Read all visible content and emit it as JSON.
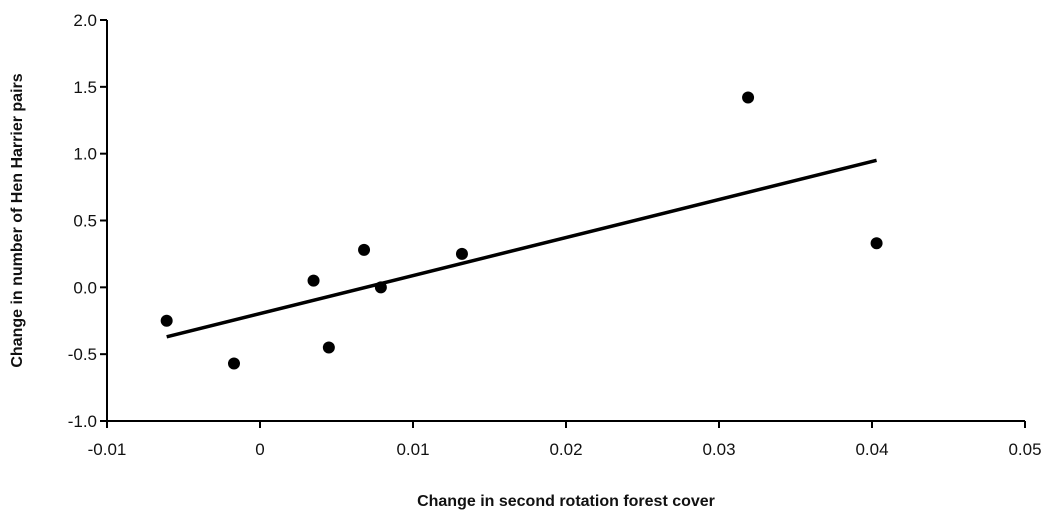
{
  "chart_data": {
    "type": "scatter",
    "title": "",
    "xlabel": "Change in second rotation forest cover",
    "ylabel": "Change in number of Hen Harrier pairs",
    "xlim": [
      -0.01,
      0.05
    ],
    "ylim": [
      -1.0,
      2.0
    ],
    "x_ticks": [
      -0.01,
      0,
      0.01,
      0.02,
      0.03,
      0.04,
      0.05
    ],
    "x_tick_labels": [
      "-0.01",
      "0",
      "0.01",
      "0.02",
      "0.03",
      "0.04",
      "0.05"
    ],
    "y_ticks": [
      -1.0,
      -0.5,
      0.0,
      0.5,
      1.0,
      1.5,
      2.0
    ],
    "y_tick_labels": [
      "-1.0",
      "-0.5",
      "0.0",
      "0.5",
      "1.0",
      "1.5",
      "2.0"
    ],
    "grid": false,
    "legend": "none",
    "series": [
      {
        "points": [
          {
            "x": -0.0061,
            "y": -0.25
          },
          {
            "x": -0.0017,
            "y": -0.57
          },
          {
            "x": 0.0035,
            "y": 0.05
          },
          {
            "x": 0.0045,
            "y": -0.45
          },
          {
            "x": 0.0068,
            "y": 0.28
          },
          {
            "x": 0.0079,
            "y": 0.0
          },
          {
            "x": 0.0132,
            "y": 0.25
          },
          {
            "x": 0.0319,
            "y": 1.42
          },
          {
            "x": 0.0403,
            "y": 0.33
          }
        ]
      }
    ],
    "trendline": {
      "x": [
        -0.0061,
        0.0403
      ],
      "y": [
        -0.37,
        0.95
      ]
    },
    "colors": {
      "points": "#000000",
      "line": "#000000",
      "axis": "#000000"
    }
  }
}
